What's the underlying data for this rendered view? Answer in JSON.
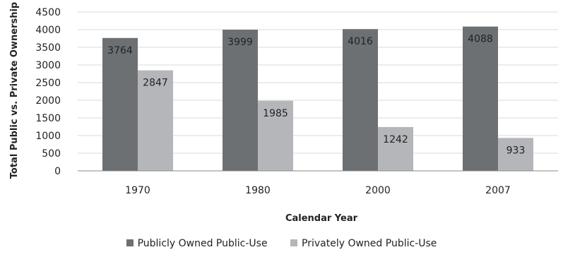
{
  "chart_data": {
    "type": "bar",
    "categories": [
      "1970",
      "1980",
      "2000",
      "2007"
    ],
    "series": [
      {
        "name": "Publicly Owned Public-Use",
        "values": [
          3764,
          3999,
          4016,
          4088
        ],
        "color": "#6d7073"
      },
      {
        "name": "Privately Owned Public-Use",
        "values": [
          2847,
          1985,
          1242,
          933
        ],
        "color": "#b4b6b9"
      }
    ],
    "xlabel": "Calendar Year",
    "ylabel": "Total Public vs. Private Ownership",
    "ylim": [
      0,
      4500
    ],
    "yticks": [
      "0",
      "500",
      "1000",
      "1500",
      "2000",
      "2500",
      "3000",
      "3500",
      "4000",
      "4500"
    ],
    "grid": true,
    "legend_position": "bottom"
  }
}
